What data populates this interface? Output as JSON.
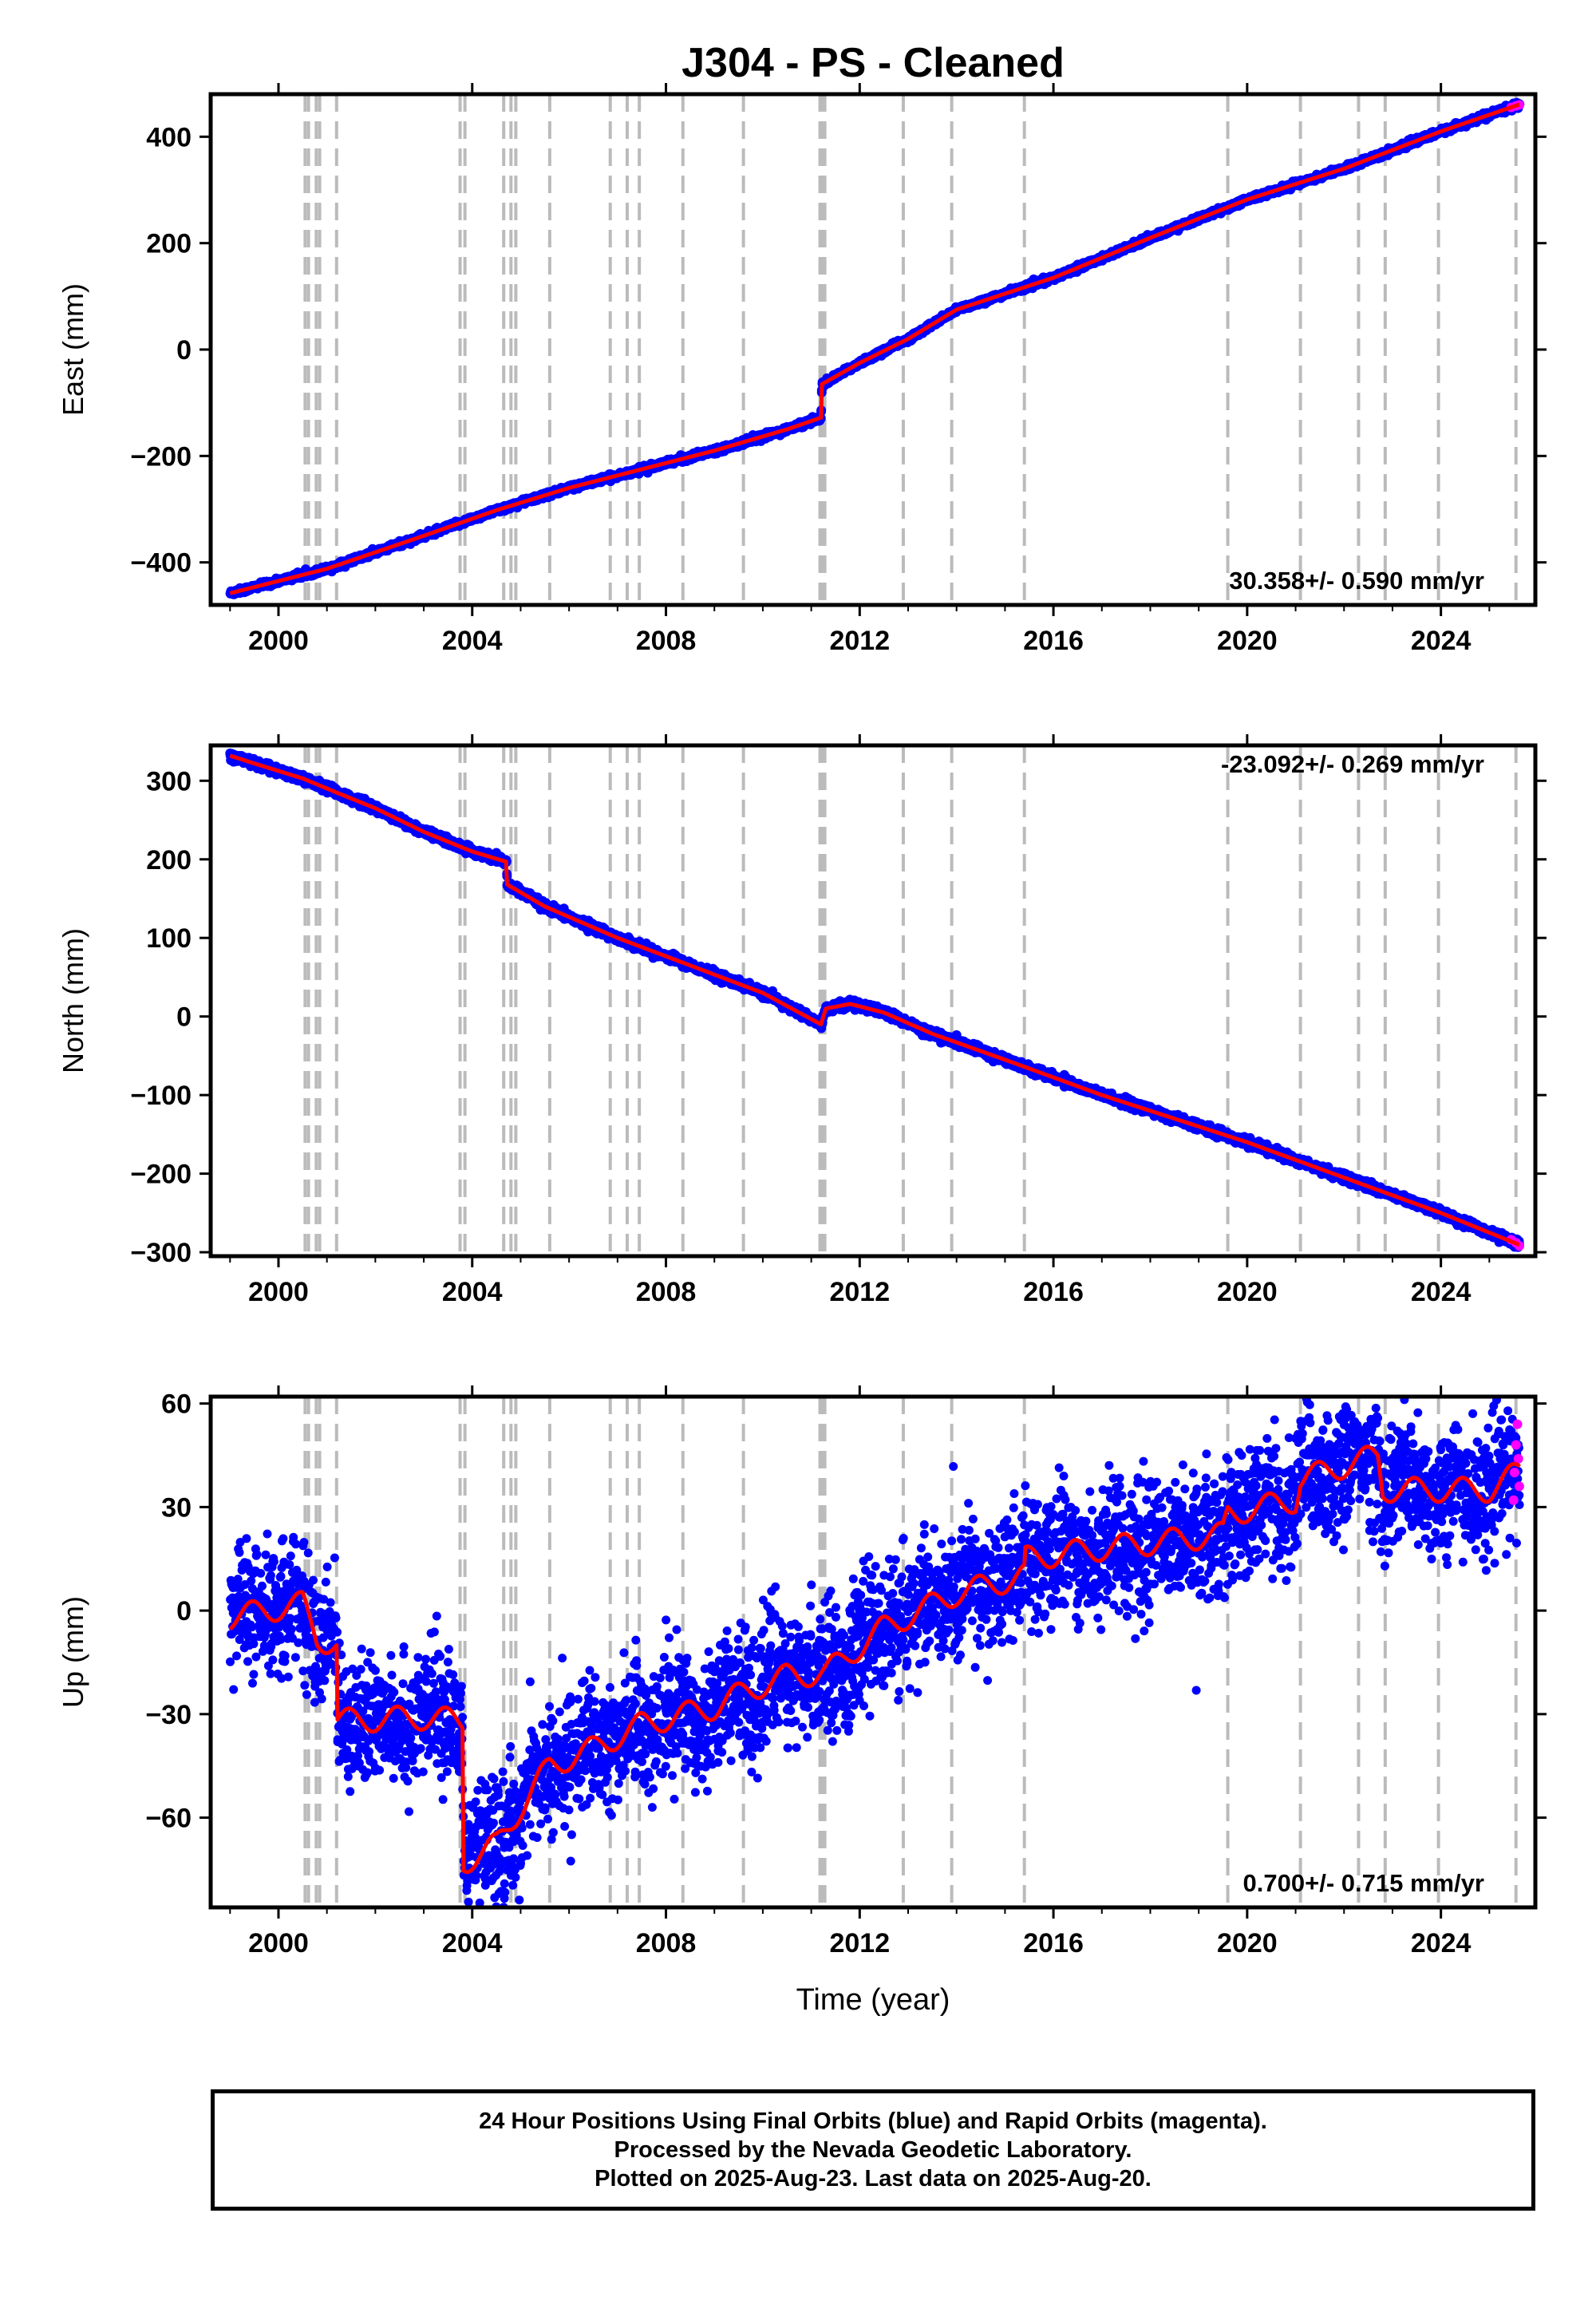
{
  "title": "J304  - PS - Cleaned",
  "xlabel": "Time (year)",
  "colors": {
    "final": "#0000ff",
    "rapid": "#ff00ff",
    "model": "#ff0000",
    "steps": "#bbbbbb",
    "frame": "#000000"
  },
  "chart_data": [
    {
      "type": "scatter",
      "component": "East",
      "ylabel": "East (mm)",
      "rate_label": "30.358+/- 0.590 mm/yr",
      "rate_position": "bottom-right",
      "xlim": [
        1998.6,
        2025.95
      ],
      "ylim": [
        -480,
        480
      ],
      "yticks": [
        -400,
        -200,
        0,
        200,
        400
      ],
      "ytick_labels": [
        "−400",
        "−200",
        "0",
        "200",
        "400"
      ],
      "xticks": [
        2000,
        2004,
        2008,
        2012,
        2016,
        2020,
        2024
      ],
      "xtick_labels": [
        "2000",
        "2004",
        "2008",
        "2012",
        "2016",
        "2020",
        "2024"
      ],
      "scatter": 2.5,
      "model_points": [
        [
          1999.0,
          -458
        ],
        [
          2001.0,
          -412
        ],
        [
          2003.0,
          -350
        ],
        [
          2004.5,
          -302
        ],
        [
          2006.0,
          -260
        ],
        [
          2007.5,
          -225
        ],
        [
          2009.0,
          -190
        ],
        [
          2010.5,
          -150
        ],
        [
          2011.2,
          -128
        ],
        [
          2011.22,
          -65
        ],
        [
          2012.0,
          -25
        ],
        [
          2013.0,
          20
        ],
        [
          2014.0,
          75
        ],
        [
          2016.0,
          135
        ],
        [
          2018.0,
          210
        ],
        [
          2020.0,
          282
        ],
        [
          2022.0,
          340
        ],
        [
          2024.0,
          410
        ],
        [
          2025.6,
          460
        ]
      ],
      "rapid_points": [
        [
          2025.45,
          455
        ],
        [
          2025.55,
          458
        ],
        [
          2025.62,
          460
        ]
      ]
    },
    {
      "type": "scatter",
      "component": "North",
      "ylabel": "North (mm)",
      "rate_label": "-23.092+/- 0.269 mm/yr",
      "rate_position": "top-right",
      "xlim": [
        1998.6,
        2025.95
      ],
      "ylim": [
        -305,
        345
      ],
      "yticks": [
        -300,
        -200,
        -100,
        0,
        100,
        200,
        300
      ],
      "ytick_labels": [
        "−300",
        "−200",
        "−100",
        "0",
        "100",
        "200",
        "300"
      ],
      "xticks": [
        2000,
        2004,
        2008,
        2012,
        2016,
        2020,
        2024
      ],
      "xtick_labels": [
        "2000",
        "2004",
        "2008",
        "2012",
        "2016",
        "2020",
        "2024"
      ],
      "scatter": 2.5,
      "model_points": [
        [
          1999.0,
          332
        ],
        [
          1999.5,
          322
        ],
        [
          2000.5,
          303
        ],
        [
          2001.2,
          285
        ],
        [
          2002.0,
          265
        ],
        [
          2003.0,
          235
        ],
        [
          2004.0,
          210
        ],
        [
          2004.7,
          197
        ],
        [
          2004.72,
          168
        ],
        [
          2005.5,
          140
        ],
        [
          2007.0,
          100
        ],
        [
          2008.5,
          65
        ],
        [
          2010.0,
          30
        ],
        [
          2011.2,
          -10
        ],
        [
          2011.3,
          10
        ],
        [
          2011.8,
          16
        ],
        [
          2012.5,
          5
        ],
        [
          2013.5,
          -22
        ],
        [
          2015.0,
          -55
        ],
        [
          2017.0,
          -100
        ],
        [
          2019.0,
          -140
        ],
        [
          2020.0,
          -160
        ],
        [
          2022.0,
          -205
        ],
        [
          2024.0,
          -250
        ],
        [
          2025.6,
          -290
        ]
      ],
      "rapid_points": [
        [
          2025.45,
          -284
        ],
        [
          2025.55,
          -288
        ],
        [
          2025.62,
          -292
        ]
      ]
    },
    {
      "type": "scatter",
      "component": "Up",
      "ylabel": "Up (mm)",
      "rate_label": "0.700+/- 0.715 mm/yr",
      "rate_position": "bottom-right",
      "xlim": [
        1998.6,
        2025.95
      ],
      "ylim": [
        -86,
        62
      ],
      "yticks": [
        -60,
        -30,
        0,
        30,
        60
      ],
      "ytick_labels": [
        "−60",
        "−30",
        "0",
        "30",
        "60"
      ],
      "xticks": [
        2000,
        2004,
        2008,
        2012,
        2016,
        2020,
        2024
      ],
      "xtick_labels": [
        "2000",
        "2004",
        "2008",
        "2012",
        "2016",
        "2020",
        "2024"
      ],
      "scatter": 9,
      "model_points": [
        [
          1999.0,
          -2
        ],
        [
          2000.5,
          2
        ],
        [
          2000.8,
          -8
        ],
        [
          2001.2,
          -10
        ],
        [
          2001.22,
          -32
        ],
        [
          2003.0,
          -31
        ],
        [
          2003.8,
          -32
        ],
        [
          2003.82,
          -73
        ],
        [
          2004.5,
          -68
        ],
        [
          2005.0,
          -57
        ],
        [
          2005.6,
          -45
        ],
        [
          2006.5,
          -40
        ],
        [
          2007.5,
          -33
        ],
        [
          2009.0,
          -28
        ],
        [
          2009.7,
          -23
        ],
        [
          2010.5,
          -19
        ],
        [
          2011.3,
          -18
        ],
        [
          2012.5,
          -5
        ],
        [
          2014.0,
          5
        ],
        [
          2015.4,
          10
        ],
        [
          2015.42,
          15
        ],
        [
          2017.0,
          18
        ],
        [
          2019.5,
          22
        ],
        [
          2019.6,
          28
        ],
        [
          2021.0,
          32
        ],
        [
          2021.1,
          38
        ],
        [
          2022.7,
          45
        ],
        [
          2022.8,
          35
        ],
        [
          2025.0,
          35
        ],
        [
          2025.6,
          40
        ]
      ],
      "rapid_points": [
        [
          2025.5,
          32
        ],
        [
          2025.52,
          40
        ],
        [
          2025.55,
          48
        ],
        [
          2025.58,
          54
        ],
        [
          2025.6,
          44
        ],
        [
          2025.62,
          36
        ]
      ]
    }
  ],
  "step_epochs": [
    2000.55,
    2000.62,
    2000.78,
    2000.85,
    2001.2,
    2003.75,
    2003.85,
    2004.65,
    2004.8,
    2004.9,
    2005.6,
    2006.85,
    2007.2,
    2007.45,
    2008.35,
    2009.6,
    2011.18,
    2011.22,
    2011.28,
    2012.9,
    2013.9,
    2015.4,
    2019.6,
    2021.1,
    2022.3,
    2022.85,
    2023.95,
    2025.55
  ],
  "footer": {
    "line1": "24 Hour Positions Using Final Orbits (blue) and Rapid Orbits (magenta).",
    "line2": "Processed by the Nevada Geodetic Laboratory.",
    "line3": "Plotted on 2025-Aug-23. Last data on 2025-Aug-20."
  }
}
